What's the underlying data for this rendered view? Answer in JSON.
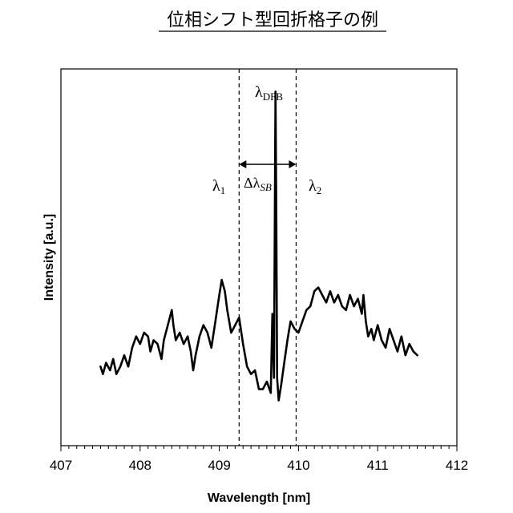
{
  "chart_data": {
    "type": "line",
    "title": "位相シフト型回折格子の例",
    "xlabel": "Wavelength [nm]",
    "ylabel": "Intensity [a.u.]",
    "xlim": [
      407,
      412
    ],
    "ylim": [
      0,
      1
    ],
    "xticks": [
      "407",
      "408",
      "409",
      "410",
      "411",
      "412"
    ],
    "grid": false,
    "legend": "none",
    "line_color": "#000000",
    "series": [
      {
        "x": [
          407.5,
          407.53,
          407.57,
          407.62,
          407.66,
          407.7,
          407.75,
          407.8,
          407.85,
          407.9,
          407.95,
          408.0,
          408.05,
          408.1,
          408.13,
          408.17,
          408.22,
          408.27,
          408.3,
          408.35,
          408.4,
          408.42,
          408.45,
          408.5,
          408.55,
          408.6,
          408.64,
          408.67,
          408.7,
          408.75,
          408.8,
          408.85,
          408.9,
          408.95,
          409.0,
          409.03,
          409.07,
          409.1,
          409.15,
          409.2,
          409.25,
          409.3,
          409.35,
          409.4,
          409.45,
          409.5,
          409.55,
          409.6,
          409.65,
          409.67,
          409.69,
          409.71,
          409.72,
          409.73,
          409.75,
          409.78,
          409.82,
          409.86,
          409.9,
          409.95,
          410.0,
          410.05,
          410.1,
          410.15,
          410.2,
          410.25,
          410.3,
          410.35,
          410.4,
          410.45,
          410.5,
          410.55,
          410.6,
          410.65,
          410.7,
          410.75,
          410.8,
          410.82,
          410.85,
          410.88,
          410.92,
          410.95,
          411.0,
          411.05,
          411.1,
          411.15,
          411.2,
          411.25,
          411.3,
          411.35,
          411.4,
          411.45,
          411.5
        ],
        "y": [
          0.21,
          0.19,
          0.22,
          0.2,
          0.23,
          0.19,
          0.21,
          0.24,
          0.21,
          0.26,
          0.29,
          0.27,
          0.3,
          0.29,
          0.25,
          0.28,
          0.27,
          0.23,
          0.28,
          0.32,
          0.36,
          0.32,
          0.28,
          0.3,
          0.27,
          0.29,
          0.25,
          0.2,
          0.24,
          0.29,
          0.32,
          0.3,
          0.26,
          0.33,
          0.4,
          0.44,
          0.41,
          0.36,
          0.3,
          0.32,
          0.34,
          0.27,
          0.21,
          0.19,
          0.2,
          0.15,
          0.15,
          0.17,
          0.14,
          0.35,
          0.18,
          0.94,
          0.62,
          0.18,
          0.12,
          0.16,
          0.22,
          0.28,
          0.33,
          0.31,
          0.3,
          0.33,
          0.36,
          0.37,
          0.41,
          0.42,
          0.4,
          0.38,
          0.41,
          0.38,
          0.4,
          0.37,
          0.36,
          0.4,
          0.37,
          0.39,
          0.35,
          0.4,
          0.33,
          0.29,
          0.31,
          0.28,
          0.32,
          0.28,
          0.26,
          0.31,
          0.28,
          0.25,
          0.29,
          0.24,
          0.27,
          0.25,
          0.24
        ]
      }
    ],
    "annotations": [
      {
        "text": "λ",
        "sub": "DFB"
      },
      {
        "text": "λ",
        "sub": "1"
      },
      {
        "text": "λ",
        "sub": "2"
      },
      {
        "text": "Δλ",
        "sub": "SB"
      }
    ],
    "vlines": [
      409.25,
      409.97
    ],
    "arrow": {
      "from": 409.25,
      "to": 409.97
    }
  }
}
